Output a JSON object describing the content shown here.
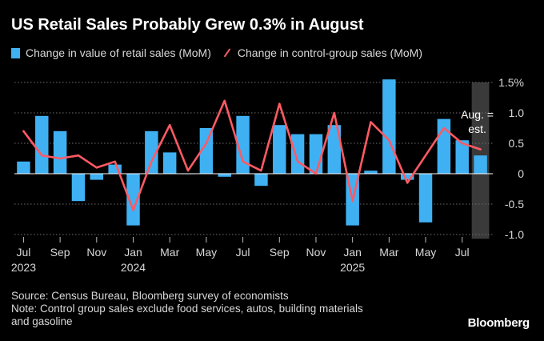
{
  "title": "US Retail Sales Probably Grew 0.3% in August",
  "legend": {
    "bar_label": "Change in value of retail sales (MoM)",
    "line_label": "Change in control-group sales (MoM)"
  },
  "chart_data": {
    "type": "bar+line",
    "title": "US Retail Sales Probably Grew 0.3% in August",
    "ylim": [
      -1.05,
      1.5
    ],
    "yticks": [
      {
        "value": 1.5,
        "label": "1.5%"
      },
      {
        "value": 1.0,
        "label": "1.0"
      },
      {
        "value": 0.5,
        "label": "0.5"
      },
      {
        "value": 0.0,
        "label": "0"
      },
      {
        "value": -0.5,
        "label": "-0.5"
      },
      {
        "value": -1.0,
        "label": "-1.0"
      }
    ],
    "months": [
      "Jul 2023",
      "Aug 2023",
      "Sep 2023",
      "Oct 2023",
      "Nov 2023",
      "Dec 2023",
      "Jan 2024",
      "Feb 2024",
      "Mar 2024",
      "Apr 2024",
      "May 2024",
      "Jun 2024",
      "Jul 2024",
      "Aug 2024",
      "Sep 2024",
      "Oct 2024",
      "Nov 2024",
      "Dec 2024",
      "Jan 2025",
      "Feb 2025",
      "Mar 2025",
      "Apr 2025",
      "May 2025",
      "Jun 2025",
      "Jul 2025",
      "Aug 2025"
    ],
    "series": [
      {
        "name": "Change in value of retail sales (MoM)",
        "type": "bar",
        "values": [
          0.2,
          0.95,
          0.7,
          -0.45,
          -0.1,
          0.15,
          -0.85,
          0.7,
          0.35,
          0.0,
          0.75,
          -0.05,
          0.95,
          -0.2,
          0.8,
          0.65,
          0.65,
          0.8,
          -0.85,
          0.05,
          1.55,
          -0.1,
          -0.8,
          0.9,
          0.55,
          0.3
        ]
      },
      {
        "name": "Change in control-group sales (MoM)",
        "type": "line",
        "values": [
          0.7,
          0.3,
          0.25,
          0.3,
          0.1,
          0.2,
          -0.6,
          0.2,
          0.8,
          0.05,
          0.5,
          1.2,
          0.2,
          0.05,
          1.15,
          0.2,
          0.0,
          1.0,
          -0.45,
          0.85,
          0.55,
          -0.15,
          0.3,
          0.75,
          0.5,
          0.4
        ]
      }
    ],
    "xticks": [
      {
        "index": 0,
        "month": "Jul",
        "year": "2023"
      },
      {
        "index": 2,
        "month": "Sep",
        "year": ""
      },
      {
        "index": 4,
        "month": "Nov",
        "year": ""
      },
      {
        "index": 6,
        "month": "Jan",
        "year": "2024"
      },
      {
        "index": 8,
        "month": "Mar",
        "year": ""
      },
      {
        "index": 10,
        "month": "May",
        "year": ""
      },
      {
        "index": 12,
        "month": "Jul",
        "year": ""
      },
      {
        "index": 14,
        "month": "Sep",
        "year": ""
      },
      {
        "index": 16,
        "month": "Nov",
        "year": ""
      },
      {
        "index": 18,
        "month": "Jan",
        "year": "2025"
      },
      {
        "index": 20,
        "month": "Mar",
        "year": ""
      },
      {
        "index": 22,
        "month": "May",
        "year": ""
      },
      {
        "index": 24,
        "month": "Jul",
        "year": ""
      }
    ],
    "estimate_index": 25,
    "annotation": {
      "line1": "Aug. =",
      "line2": "est."
    },
    "colors": {
      "bar": "#3fb1f3",
      "line": "#ff5a64",
      "estimate_band": "#3a3a3a",
      "zero_line": "#ffffff",
      "grid": "#6e6e6e"
    }
  },
  "footer": {
    "source": "Source: Census Bureau, Bloomberg survey of economists",
    "note_line1": "Note: Control group sales exclude food services, autos, building materials",
    "note_line2": "and gasoline"
  },
  "brand": "Bloomberg"
}
